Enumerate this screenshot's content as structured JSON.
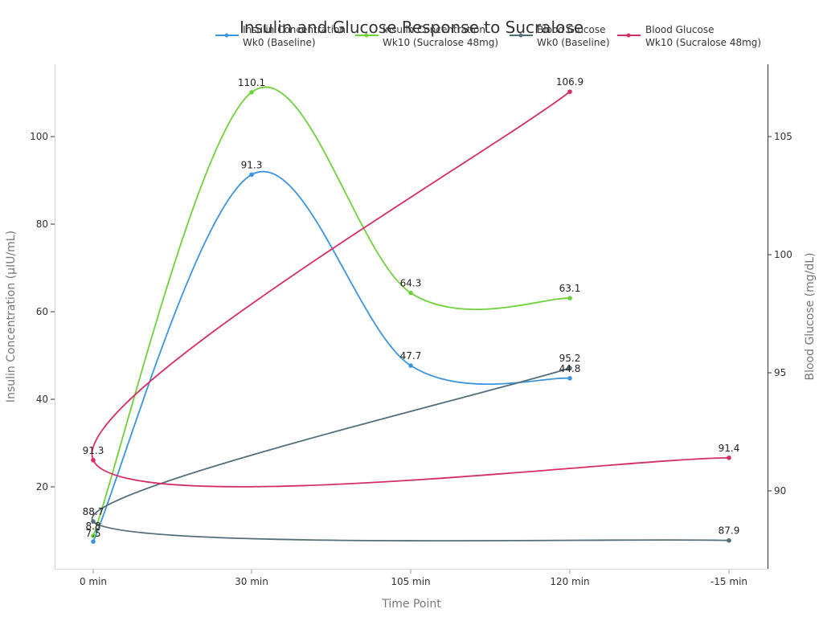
{
  "chart_data": {
    "type": "line",
    "title": "Insulin and Glucose Response to Sucralose",
    "xlabel": "Time Point",
    "ylabel": "Insulin Concentration (µIU/mL)",
    "y2label": "Blood Glucose (mg/dL)",
    "categories": [
      "0 min",
      "30 min",
      "105 min",
      "120 min",
      "-15 min"
    ],
    "ylim": [
      -0.5,
      115
    ],
    "y2lim": [
      87.7,
      108.9
    ],
    "yticks": [
      20,
      40,
      60,
      80,
      100
    ],
    "y2ticks": [
      90,
      95,
      100,
      105
    ],
    "grid": false,
    "legend_position": "top",
    "series": [
      {
        "name": "Insulin Concentration Wk0 (Baseline)",
        "legend_line1": "Insulin Concentration",
        "legend_line2": "Wk0 (Baseline)",
        "axis": "left",
        "color": "#3b94e0",
        "values": [
          7.5,
          91.3,
          47.7,
          44.8,
          null
        ],
        "labels": [
          "7.5",
          "91.3",
          "47.7",
          "44.8",
          null
        ]
      },
      {
        "name": "Insulin Concentration Wk10 (Sucralose 48mg)",
        "legend_line1": "Insulin Concentration",
        "legend_line2": "Wk10 (Sucralose 48mg)",
        "axis": "left",
        "color": "#6fd13b",
        "values": [
          8.8,
          110.1,
          64.3,
          63.1,
          null
        ],
        "labels": [
          "8.8",
          "110.1",
          "64.3",
          "63.1",
          null
        ]
      },
      {
        "name": "Blood Glucose Wk0 (Baseline)",
        "legend_line1": "Blood Glucose",
        "legend_line2": "Wk0 (Baseline)",
        "axis": "right",
        "color": "#546e7a",
        "values": [
          88.7,
          null,
          null,
          95.2,
          87.9
        ],
        "labels": [
          "88.7",
          null,
          null,
          "95.2",
          "87.9"
        ]
      },
      {
        "name": "Blood Glucose Wk10 (Sucralose 48mg)",
        "legend_line1": "Blood Glucose",
        "legend_line2": "Wk10 (Sucralose 48mg)",
        "axis": "right",
        "color": "#d62c63",
        "values": [
          91.3,
          null,
          null,
          106.9,
          91.4
        ],
        "labels": [
          "91.3",
          null,
          null,
          "106.9",
          "91.4"
        ]
      }
    ]
  }
}
